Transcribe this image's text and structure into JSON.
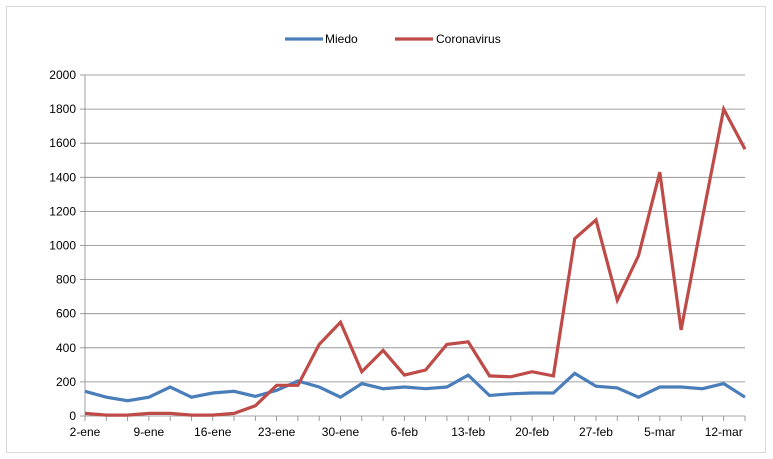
{
  "chart_data": {
    "type": "line",
    "title": "",
    "xlabel": "",
    "ylabel": "",
    "ylim": [
      0,
      2000
    ],
    "yticks": [
      0,
      200,
      400,
      600,
      800,
      1000,
      1200,
      1400,
      1600,
      1800,
      2000
    ],
    "grid": "horizontal",
    "legend_position": "top",
    "categories": [
      "2-ene",
      "",
      "",
      "9-ene",
      "",
      "",
      "16-ene",
      "",
      "",
      "23-ene",
      "",
      "",
      "30-ene",
      "",
      "",
      "6-feb",
      "",
      "",
      "13-feb",
      "",
      "",
      "20-feb",
      "",
      "",
      "27-feb",
      "",
      "",
      "5-mar",
      "",
      "",
      "12-mar",
      ""
    ],
    "x_tick_labels": [
      "2-ene",
      "9-ene",
      "16-ene",
      "23-ene",
      "30-ene",
      "6-feb",
      "13-feb",
      "20-feb",
      "27-feb",
      "5-mar",
      "12-mar"
    ],
    "series": [
      {
        "name": "Miedo",
        "color": "#4a7ebb",
        "values": [
          145,
          110,
          90,
          110,
          170,
          110,
          135,
          145,
          115,
          150,
          205,
          170,
          110,
          190,
          160,
          170,
          160,
          170,
          240,
          120,
          130,
          135,
          135,
          250,
          175,
          165,
          110,
          170,
          170,
          160,
          190,
          110
        ]
      },
      {
        "name": "Coronavirus",
        "color": "#be4b48",
        "values": [
          15,
          5,
          5,
          15,
          15,
          5,
          5,
          15,
          60,
          180,
          180,
          420,
          550,
          260,
          385,
          240,
          270,
          420,
          435,
          235,
          230,
          260,
          235,
          1040,
          1150,
          680,
          940,
          1430,
          505,
          1160,
          1800,
          1565
        ]
      }
    ]
  }
}
